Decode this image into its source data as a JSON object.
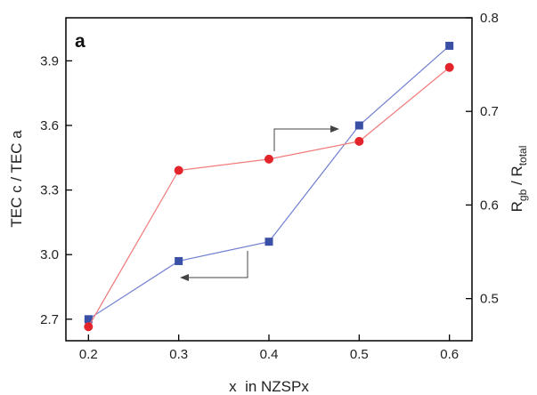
{
  "chart_data": {
    "type": "line",
    "panel_label": "a",
    "xlabel": "x  in NZSPx",
    "x": [
      0.2,
      0.3,
      0.4,
      0.5,
      0.6
    ],
    "xlim": [
      0.175,
      0.625
    ],
    "x_ticks": [
      0.2,
      0.3,
      0.4,
      0.5,
      0.6
    ],
    "x_tick_labels": [
      "0.2",
      "0.3",
      "0.4",
      "0.5",
      "0.6"
    ],
    "left_axis": {
      "label": "TEC c / TEC a",
      "ylim": [
        2.6,
        4.1
      ],
      "ticks": [
        2.7,
        3.0,
        3.3,
        3.6,
        3.9
      ],
      "tick_labels": [
        "2.7",
        "3.0",
        "3.3",
        "3.6",
        "3.9"
      ]
    },
    "right_axis": {
      "label_main": "R",
      "label_sub1": "gb",
      "label_mid": " / R",
      "label_sub2": "total",
      "ylim": [
        0.455,
        0.8
      ],
      "ticks": [
        0.5,
        0.6,
        0.7,
        0.8
      ],
      "tick_labels": [
        "0.5",
        "0.6",
        "0.7",
        "0.8"
      ]
    },
    "series": [
      {
        "axis": "left",
        "marker": "square",
        "color": "#3a4fa6",
        "line_color": "#6f7fd0",
        "values": [
          2.7,
          2.97,
          3.06,
          3.6,
          3.97
        ]
      },
      {
        "axis": "right",
        "marker": "circle",
        "color": "#e3252b",
        "line_color": "#f07a7a",
        "values": [
          0.47,
          0.637,
          0.649,
          0.668,
          0.747
        ]
      }
    ],
    "grid": false,
    "legend": "none"
  }
}
